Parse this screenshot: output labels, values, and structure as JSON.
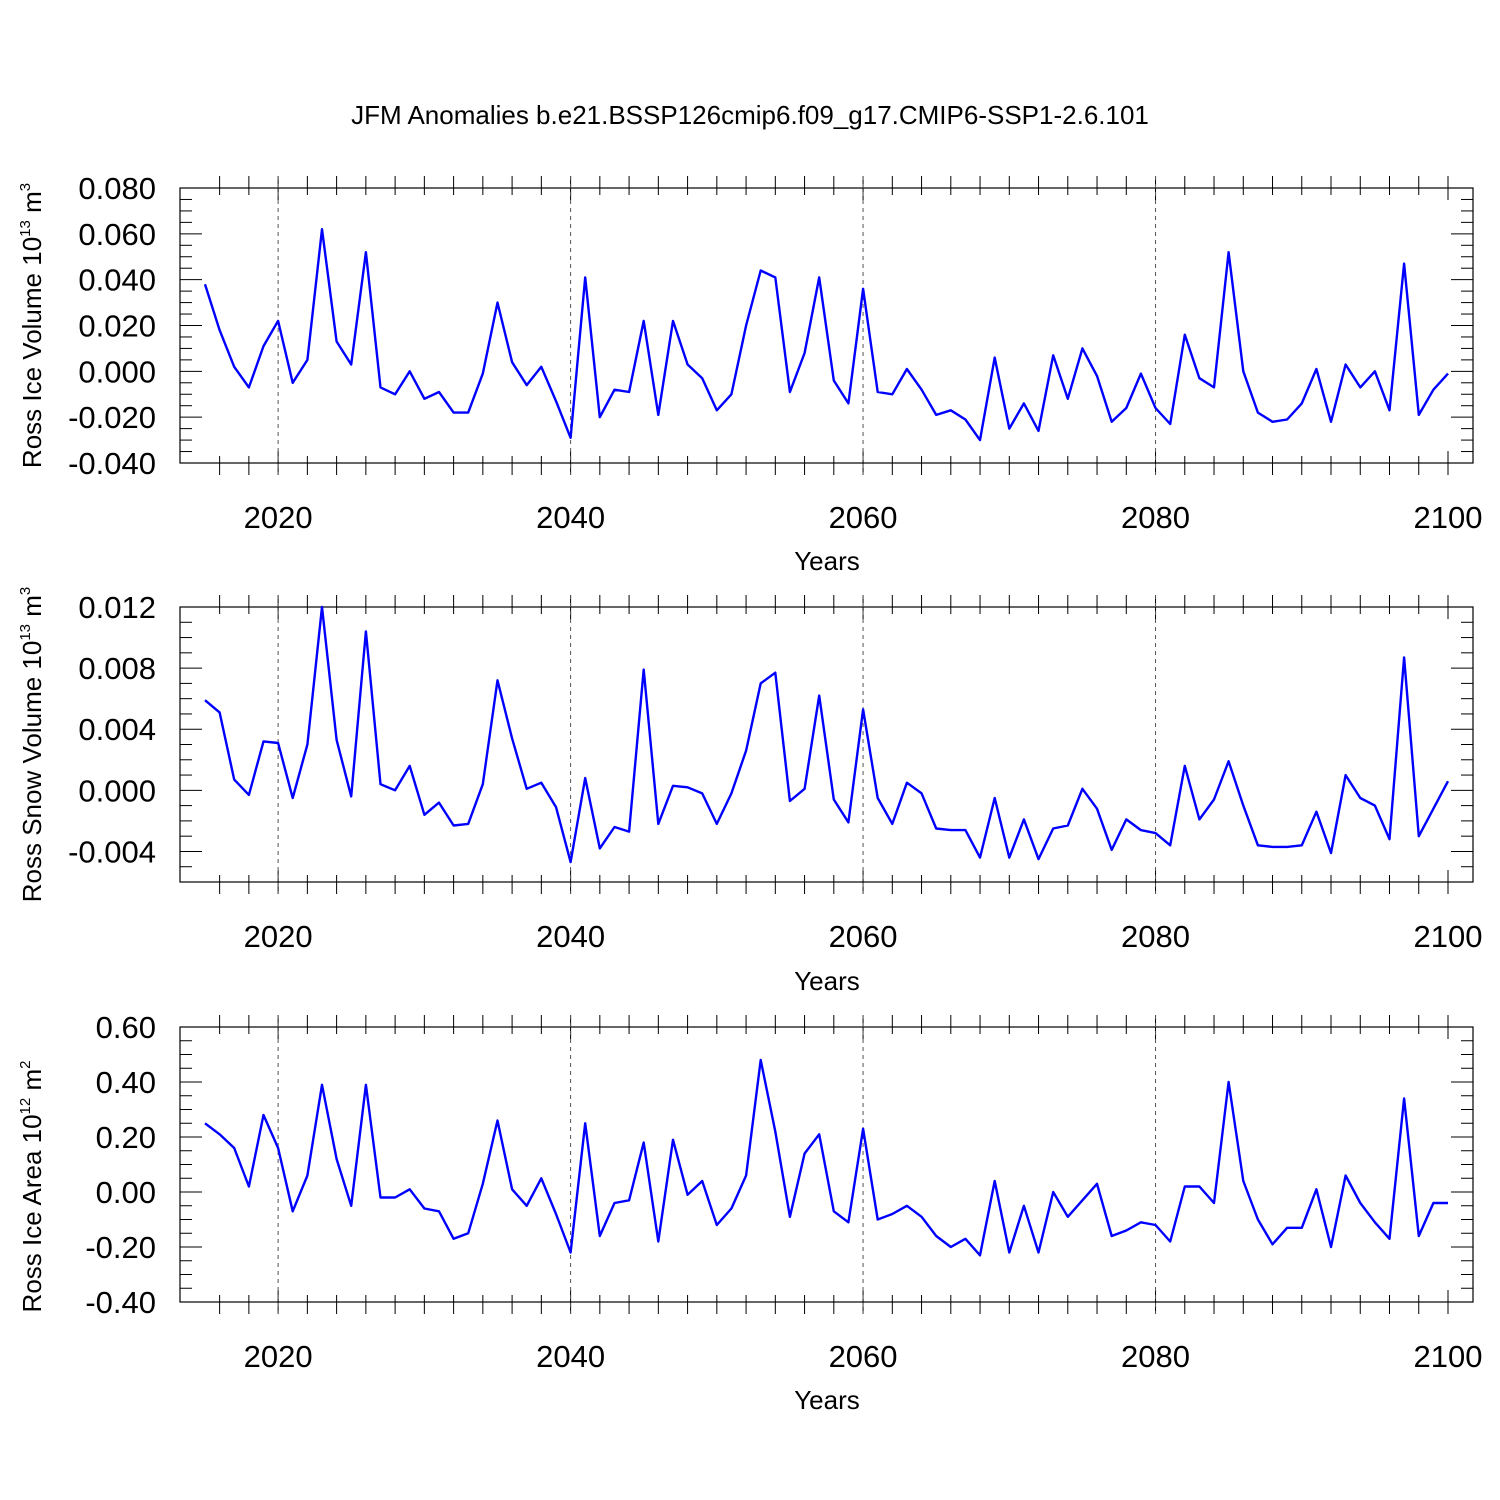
{
  "title": "JFM Anomalies b.e21.BSSP126cmip6.f09_g17.CMIP6-SSP1-2.6.101",
  "colors": {
    "line": "#0000ff",
    "axis": "#000000",
    "grid": "#555555"
  },
  "chart_data": [
    {
      "type": "line",
      "ylabel": "Ross Ice Volume 10",
      "ylabel_exp": "13",
      "ylabel_unit": " m",
      "ylabel_unit_exp": "3",
      "xlabel": "Years",
      "xlim": [
        2015,
        2100
      ],
      "ylim": [
        -0.04,
        0.08
      ],
      "xticks": [
        "2020",
        "2040",
        "2060",
        "2080",
        "2100"
      ],
      "yticks": [
        "0.080",
        "0.060",
        "0.040",
        "0.020",
        "0.000",
        "-0.020",
        "-0.040"
      ],
      "ytick_values": [
        0.08,
        0.06,
        0.04,
        0.02,
        0.0,
        -0.02,
        -0.04
      ],
      "x_start": 2015,
      "values": [
        0.038,
        0.018,
        0.002,
        -0.007,
        0.011,
        0.022,
        -0.005,
        0.005,
        0.062,
        0.013,
        0.003,
        0.052,
        -0.007,
        -0.01,
        0.0,
        -0.012,
        -0.009,
        -0.018,
        -0.018,
        -0.001,
        0.03,
        0.004,
        -0.006,
        0.002,
        -0.013,
        -0.029,
        0.041,
        -0.02,
        -0.008,
        -0.009,
        0.022,
        -0.019,
        0.022,
        0.003,
        -0.003,
        -0.017,
        -0.01,
        0.02,
        0.044,
        0.041,
        -0.009,
        0.008,
        0.041,
        -0.004,
        -0.014,
        0.036,
        -0.009,
        -0.01,
        0.001,
        -0.008,
        -0.019,
        -0.017,
        -0.021,
        -0.03,
        0.006,
        -0.025,
        -0.014,
        -0.026,
        0.007,
        -0.012,
        0.01,
        -0.002,
        -0.022,
        -0.016,
        -0.001,
        -0.016,
        -0.023,
        0.016,
        -0.003,
        -0.007,
        0.052,
        0.0,
        -0.018,
        -0.022,
        -0.021,
        -0.014,
        0.001,
        -0.022,
        0.003,
        -0.007,
        0.0,
        -0.017,
        0.047,
        -0.019,
        -0.008,
        -0.001
      ]
    },
    {
      "type": "line",
      "ylabel": "Ross Snow Volume 10",
      "ylabel_exp": "13",
      "ylabel_unit": " m",
      "ylabel_unit_exp": "3",
      "xlabel": "Years",
      "xlim": [
        2015,
        2100
      ],
      "ylim": [
        -0.006,
        0.012
      ],
      "xticks": [
        "2020",
        "2040",
        "2060",
        "2080",
        "2100"
      ],
      "yticks": [
        "0.012",
        "0.008",
        "0.004",
        "0.000",
        "-0.004"
      ],
      "ytick_values": [
        0.012,
        0.008,
        0.004,
        0.0,
        -0.004
      ],
      "x_start": 2015,
      "values": [
        0.0059,
        0.0051,
        0.0007,
        -0.0003,
        0.0032,
        0.0031,
        -0.0005,
        0.003,
        0.012,
        0.0033,
        -0.0004,
        0.0104,
        0.0004,
        0.0,
        0.0016,
        -0.0016,
        -0.0008,
        -0.0023,
        -0.0022,
        0.0004,
        0.0072,
        0.0034,
        0.0001,
        0.0005,
        -0.0011,
        -0.0047,
        0.0008,
        -0.0038,
        -0.0024,
        -0.0027,
        0.0079,
        -0.0022,
        0.0003,
        0.0002,
        -0.0002,
        -0.0022,
        -0.0002,
        0.0026,
        0.007,
        0.0077,
        -0.0007,
        0.0001,
        0.0062,
        -0.0006,
        -0.0021,
        0.0053,
        -0.0005,
        -0.0022,
        0.0005,
        -0.0002,
        -0.0025,
        -0.0026,
        -0.0026,
        -0.0044,
        -0.0005,
        -0.0044,
        -0.0019,
        -0.0045,
        -0.0025,
        -0.0023,
        0.0001,
        -0.0012,
        -0.0039,
        -0.0019,
        -0.0026,
        -0.0028,
        -0.0036,
        0.0016,
        -0.0019,
        -0.0006,
        0.0019,
        -0.001,
        -0.0036,
        -0.0037,
        -0.0037,
        -0.0036,
        -0.0014,
        -0.0041,
        0.001,
        -0.0005,
        -0.001,
        -0.0032,
        0.0087,
        -0.003,
        -0.0012,
        0.0006
      ]
    },
    {
      "type": "line",
      "ylabel": "Ross Ice Area 10",
      "ylabel_exp": "12",
      "ylabel_unit": " m",
      "ylabel_unit_exp": "2",
      "xlabel": "Years",
      "xlim": [
        2015,
        2100
      ],
      "ylim": [
        -0.4,
        0.6
      ],
      "xticks": [
        "2020",
        "2040",
        "2060",
        "2080",
        "2100"
      ],
      "yticks": [
        "0.60",
        "0.40",
        "0.20",
        "0.00",
        "-0.20",
        "-0.40"
      ],
      "ytick_values": [
        0.6,
        0.4,
        0.2,
        0.0,
        -0.2,
        -0.4
      ],
      "x_start": 2015,
      "values": [
        0.25,
        0.21,
        0.16,
        0.02,
        0.28,
        0.16,
        -0.07,
        0.06,
        0.39,
        0.12,
        -0.05,
        0.39,
        -0.02,
        -0.02,
        0.01,
        -0.06,
        -0.07,
        -0.17,
        -0.15,
        0.03,
        0.26,
        0.01,
        -0.05,
        0.05,
        -0.08,
        -0.22,
        0.25,
        -0.16,
        -0.04,
        -0.03,
        0.18,
        -0.18,
        0.19,
        -0.01,
        0.04,
        -0.12,
        -0.06,
        0.06,
        0.48,
        0.22,
        -0.09,
        0.14,
        0.21,
        -0.07,
        -0.11,
        0.23,
        -0.1,
        -0.08,
        -0.05,
        -0.09,
        -0.16,
        -0.2,
        -0.17,
        -0.23,
        0.04,
        -0.22,
        -0.05,
        -0.22,
        0.0,
        -0.09,
        -0.03,
        0.03,
        -0.16,
        -0.14,
        -0.11,
        -0.12,
        -0.18,
        0.02,
        0.02,
        -0.04,
        0.4,
        0.04,
        -0.1,
        -0.19,
        -0.13,
        -0.13,
        0.01,
        -0.2,
        0.06,
        -0.04,
        -0.11,
        -0.17,
        0.34,
        -0.16,
        -0.04,
        -0.04
      ]
    }
  ]
}
